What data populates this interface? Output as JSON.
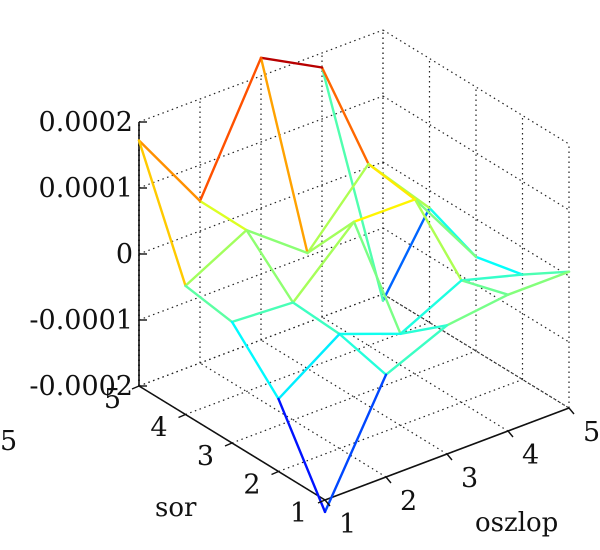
{
  "chart_data": {
    "type": "mesh3d",
    "title": "",
    "xlabel": "oszlop",
    "ylabel": "sor",
    "zlabel": "",
    "x_ticks": [
      "1",
      "2",
      "3",
      "4",
      "5"
    ],
    "y_ticks": [
      "1",
      "2",
      "3",
      "4",
      "5"
    ],
    "z_ticks": [
      "0.0002",
      "0.0001",
      "0",
      "-0.0001",
      "-0.0002"
    ],
    "zlim": [
      -0.0002,
      0.0002
    ],
    "grid": true,
    "colormap": "jet",
    "z": [
      [
        -0.000218,
        -4.5e-05,
        -5e-06,
        6.5e-06,
        6.5e-06
      ],
      [
        -9e-05,
        -2.65e-05,
        -6.1e-05,
        -1.5e-05,
        -4.1e-05
      ],
      [
        -1.65e-05,
        -2.2e-05,
        6.55e-05,
        6.45e-05,
        -5.75e-05
      ],
      [
        -5e-06,
        4.45e-05,
        -2.5e-05,
        7.5e-05,
        -2.65e-05
      ],
      [
        0.000172,
        4.55e-05,
        0.0002275,
        0.000178,
        -0.00021
      ]
    ]
  },
  "outside_label": "5"
}
